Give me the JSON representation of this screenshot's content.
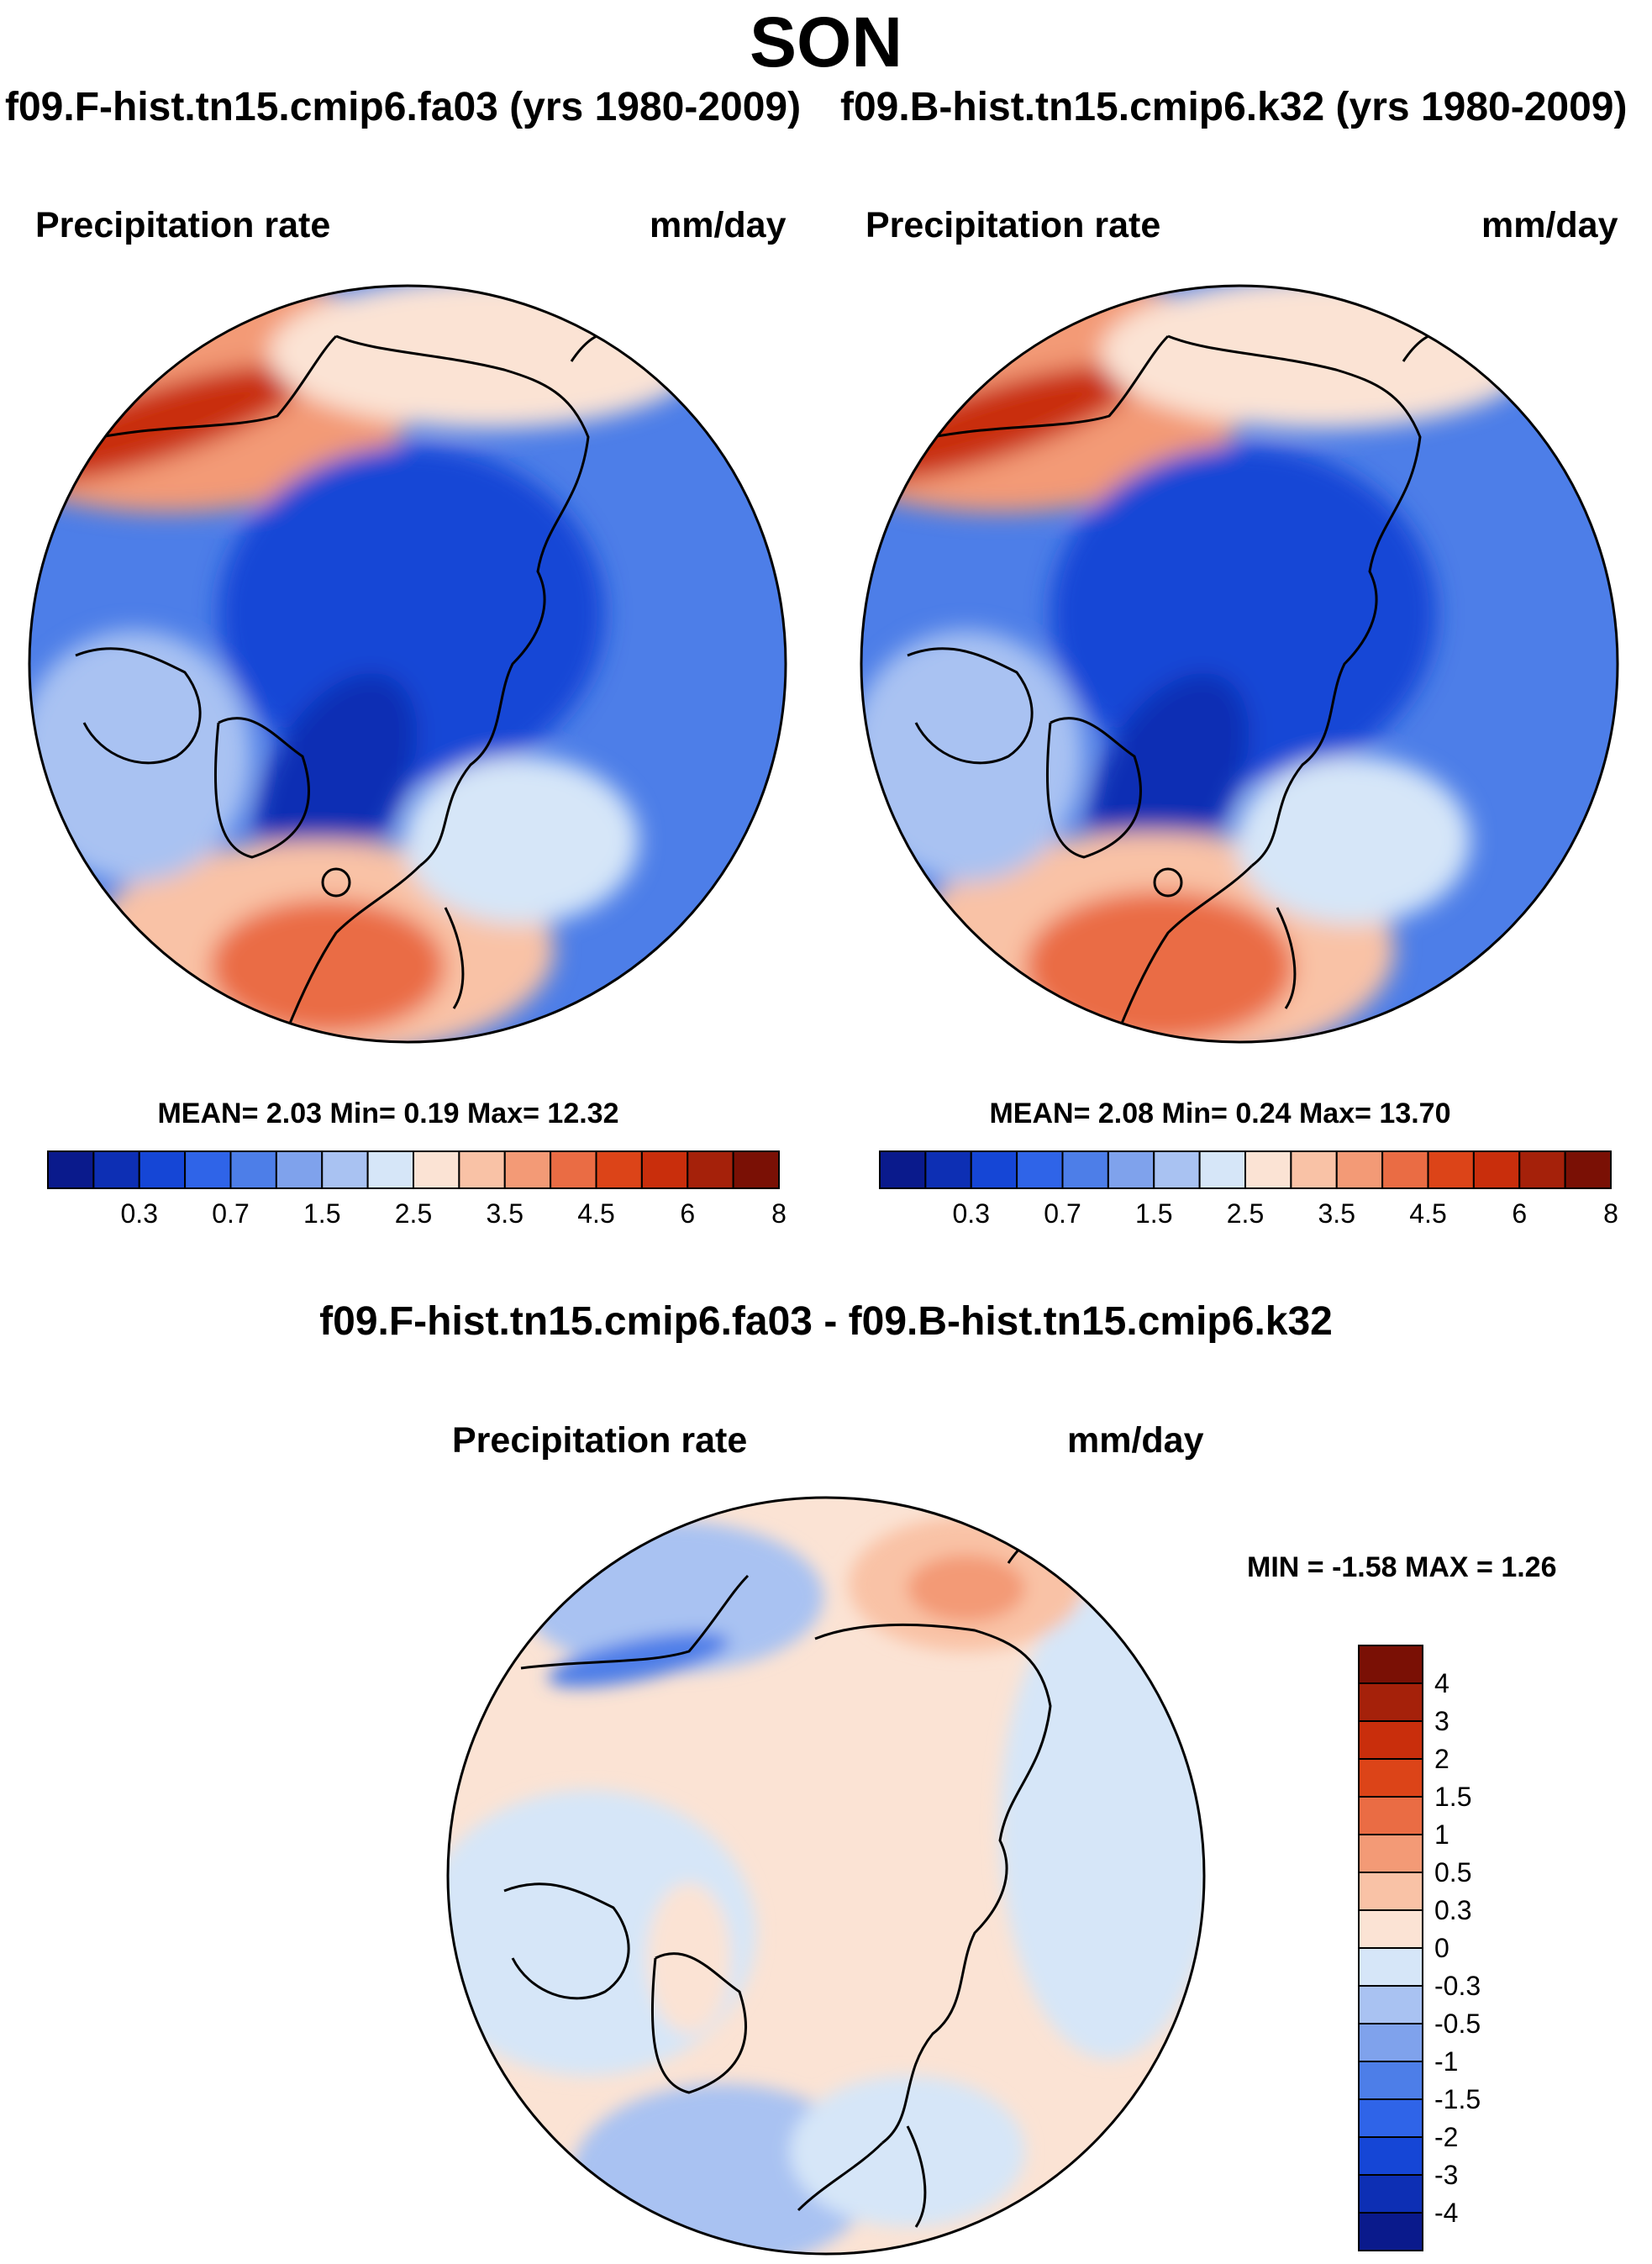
{
  "figure": {
    "season": "SON",
    "case_a_title": "f09.F-hist.tn15.cmip6.fa03 (yrs 1980-2009)",
    "case_b_title": "f09.B-hist.tn15.cmip6.k32 (yrs 1980-2009)",
    "diff_title": "f09.F-hist.tn15.cmip6.fa03 - f09.B-hist.tn15.cmip6.k32"
  },
  "panels": {
    "a": {
      "variable": "Precipitation rate",
      "units": "mm/day",
      "stats": "MEAN=   2.03  Min=   0.19  Max=  12.32"
    },
    "b": {
      "variable": "Precipitation rate",
      "units": "mm/day",
      "stats": "MEAN=   2.08  Min=   0.24  Max=  13.70"
    },
    "diff": {
      "variable": "Precipitation rate",
      "units": "mm/day",
      "stats": "MIN =  -1.58 MAX =   1.26"
    }
  },
  "colors": {
    "levels_palette": [
      "#0a1a8c",
      "#0d2fb4",
      "#1546d6",
      "#2f64e8",
      "#4d7ee8",
      "#7fa2ec",
      "#a9c2f2",
      "#d6e6f8",
      "#fbe3d4",
      "#f9c2a6",
      "#f39a76",
      "#ea6c44",
      "#dc4418",
      "#c92e0c",
      "#a5210a",
      "#7a1005"
    ],
    "diff_palette": [
      "#0a1a8c",
      "#0d2fb4",
      "#1546d6",
      "#2f64e8",
      "#4d7ee8",
      "#7fa2ec",
      "#a9c2f2",
      "#d6e6f8",
      "#fbe3d4",
      "#f9c2a6",
      "#f39a76",
      "#ea6c44",
      "#dc4418",
      "#c92e0c",
      "#a5210a",
      "#7a1005"
    ],
    "coast": "#000000"
  },
  "chart_data": [
    {
      "type": "heatmap",
      "title": "f09.F-hist.tn15.cmip6.fa03 (yrs 1980-2009)",
      "variable": "Precipitation rate",
      "units": "mm/day",
      "projection": "north polar stereographic",
      "mean": 2.03,
      "min": 0.19,
      "max": 12.32,
      "contour_levels": [
        0.2,
        0.3,
        0.5,
        0.7,
        1,
        1.5,
        2,
        2.5,
        3,
        3.5,
        4,
        4.5,
        5,
        6,
        7,
        8,
        9
      ],
      "colorbar_tick_labels": [
        "0.3",
        "0.7",
        "1.5",
        "2.5",
        "3.5",
        "4.5",
        "6",
        "8"
      ]
    },
    {
      "type": "heatmap",
      "title": "f09.B-hist.tn15.cmip6.k32 (yrs 1980-2009)",
      "variable": "Precipitation rate",
      "units": "mm/day",
      "projection": "north polar stereographic",
      "mean": 2.08,
      "min": 0.24,
      "max": 13.7,
      "contour_levels": [
        0.2,
        0.3,
        0.5,
        0.7,
        1,
        1.5,
        2,
        2.5,
        3,
        3.5,
        4,
        4.5,
        5,
        6,
        7,
        8,
        9
      ],
      "colorbar_tick_labels": [
        "0.3",
        "0.7",
        "1.5",
        "2.5",
        "3.5",
        "4.5",
        "6",
        "8"
      ]
    },
    {
      "type": "heatmap",
      "title": "f09.F-hist.tn15.cmip6.fa03 - f09.B-hist.tn15.cmip6.k32",
      "variable": "Precipitation rate",
      "units": "mm/day",
      "projection": "north polar stereographic",
      "min": -1.58,
      "max": 1.26,
      "contour_levels": [
        -4,
        -3,
        -2,
        -1.5,
        -1,
        -0.5,
        -0.3,
        0,
        0.3,
        0.5,
        1,
        1.5,
        2,
        3,
        4
      ],
      "colorbar_tick_labels": [
        "4",
        "3",
        "2",
        "1.5",
        "1",
        "0.5",
        "0.3",
        "0",
        "-0.3",
        "-0.5",
        "-1",
        "-1.5",
        "-2",
        "-3",
        "-4"
      ]
    }
  ]
}
